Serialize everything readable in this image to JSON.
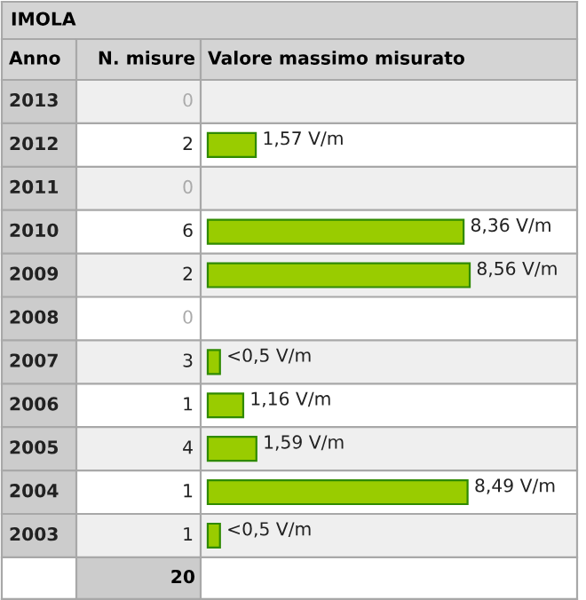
{
  "chart_data": {
    "type": "bar",
    "orientation": "horizontal",
    "title": "IMOLA",
    "ylabel": "Anno",
    "xlabel": "Valore massimo misurato",
    "categories": [
      "2013",
      "2012",
      "2011",
      "2010",
      "2009",
      "2008",
      "2007",
      "2006",
      "2005",
      "2004",
      "2003"
    ],
    "values": [
      null,
      1.57,
      null,
      8.36,
      8.56,
      null,
      0.4,
      1.16,
      1.59,
      8.49,
      0.4
    ],
    "value_labels": [
      null,
      "1,57 V/m",
      null,
      "8,36 V/m",
      "8,56 V/m",
      null,
      "<0,5 V/m",
      "1,16 V/m",
      "1,59 V/m",
      "8,49 V/m",
      "<0,5 V/m"
    ],
    "color": "#99cc00",
    "annotations": [
      "N. misure",
      "20",
      "0",
      "2",
      "0",
      "6",
      "2",
      "0",
      "3",
      "1",
      "4",
      "1",
      "1"
    ]
  }
}
